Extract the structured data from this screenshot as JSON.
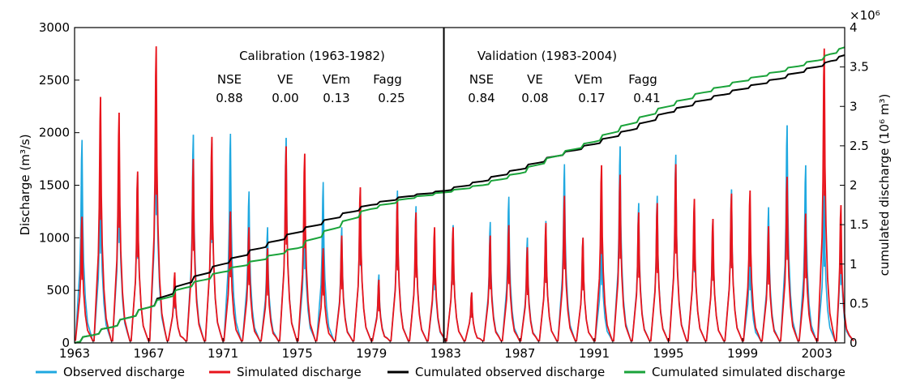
{
  "chart_data": {
    "type": "line",
    "xlabel": "",
    "ylabel_left": "Discharge (m³/s)",
    "ylabel_right": "cumulated discharge (10⁶ m³)",
    "right_axis_multiplier": "×10⁶",
    "x_range": [
      1963,
      2004.5
    ],
    "ylim_left": [
      0,
      3000
    ],
    "ylim_right": [
      0,
      4
    ],
    "x_ticks": [
      "1963",
      "1967",
      "1971",
      "1975",
      "1979",
      "1983",
      "1987",
      "1991",
      "1995",
      "1999",
      "2003"
    ],
    "y_ticks_left": [
      "0",
      "500",
      "1000",
      "1500",
      "2000",
      "2500",
      "3000"
    ],
    "y_ticks_right": [
      "0",
      "0.5",
      "1",
      "1.5",
      "2",
      "2.5",
      "3",
      "3.5",
      "4"
    ],
    "split_year": 1982.9,
    "periods": [
      {
        "title": "Calibration (1963-1982)",
        "metrics": [
          {
            "label": "NSE",
            "value": "0.88"
          },
          {
            "label": "VE",
            "value": "0.00"
          },
          {
            "label": "VEm",
            "value": "0.13"
          },
          {
            "label": "Fagg",
            "value": "0.25"
          }
        ]
      },
      {
        "title": "Validation (1983-2004)",
        "metrics": [
          {
            "label": "NSE",
            "value": "0.84"
          },
          {
            "label": "VE",
            "value": "0.08"
          },
          {
            "label": "VEm",
            "value": "0.17"
          },
          {
            "label": "Fagg",
            "value": "0.41"
          }
        ]
      }
    ],
    "series": [
      {
        "name": "Observed discharge",
        "axis": "left",
        "color": "#1fa8e0",
        "peaks": [
          {
            "year": 1963.4,
            "value": 1930
          },
          {
            "year": 1964.4,
            "value": 1700
          },
          {
            "year": 1965.4,
            "value": 1900
          },
          {
            "year": 1966.4,
            "value": 1600
          },
          {
            "year": 1967.4,
            "value": 2430
          },
          {
            "year": 1968.4,
            "value": 650
          },
          {
            "year": 1969.4,
            "value": 1980
          },
          {
            "year": 1970.4,
            "value": 1900
          },
          {
            "year": 1971.4,
            "value": 1990
          },
          {
            "year": 1972.4,
            "value": 1440
          },
          {
            "year": 1973.4,
            "value": 1100
          },
          {
            "year": 1974.4,
            "value": 1950
          },
          {
            "year": 1975.4,
            "value": 1400
          },
          {
            "year": 1976.4,
            "value": 1530
          },
          {
            "year": 1977.4,
            "value": 1100
          },
          {
            "year": 1978.4,
            "value": 1460
          },
          {
            "year": 1979.4,
            "value": 650
          },
          {
            "year": 1980.4,
            "value": 1450
          },
          {
            "year": 1981.4,
            "value": 1300
          },
          {
            "year": 1982.4,
            "value": 1000
          },
          {
            "year": 1983.4,
            "value": 1120
          },
          {
            "year": 1984.4,
            "value": 480
          },
          {
            "year": 1985.4,
            "value": 1150
          },
          {
            "year": 1986.4,
            "value": 1390
          },
          {
            "year": 1987.4,
            "value": 1000
          },
          {
            "year": 1988.4,
            "value": 1160
          },
          {
            "year": 1989.4,
            "value": 1700
          },
          {
            "year": 1990.4,
            "value": 1000
          },
          {
            "year": 1991.4,
            "value": 1100
          },
          {
            "year": 1992.4,
            "value": 1870
          },
          {
            "year": 1993.4,
            "value": 1330
          },
          {
            "year": 1994.4,
            "value": 1400
          },
          {
            "year": 1995.4,
            "value": 1790
          },
          {
            "year": 1996.4,
            "value": 1340
          },
          {
            "year": 1997.4,
            "value": 1180
          },
          {
            "year": 1998.4,
            "value": 1460
          },
          {
            "year": 1999.4,
            "value": 1000
          },
          {
            "year": 2000.4,
            "value": 1290
          },
          {
            "year": 2001.4,
            "value": 2070
          },
          {
            "year": 2002.4,
            "value": 1690
          },
          {
            "year": 2003.4,
            "value": 1450
          },
          {
            "year": 2004.3,
            "value": 1100
          }
        ]
      },
      {
        "name": "Simulated discharge",
        "axis": "left",
        "color": "#e8141c",
        "peaks": [
          {
            "year": 1963.4,
            "value": 1200
          },
          {
            "year": 1964.4,
            "value": 2340
          },
          {
            "year": 1965.4,
            "value": 2190
          },
          {
            "year": 1966.4,
            "value": 1630
          },
          {
            "year": 1967.4,
            "value": 2820
          },
          {
            "year": 1968.4,
            "value": 670
          },
          {
            "year": 1969.4,
            "value": 1750
          },
          {
            "year": 1970.4,
            "value": 1960
          },
          {
            "year": 1971.4,
            "value": 1250
          },
          {
            "year": 1972.4,
            "value": 1100
          },
          {
            "year": 1973.4,
            "value": 900
          },
          {
            "year": 1974.4,
            "value": 1870
          },
          {
            "year": 1975.4,
            "value": 1800
          },
          {
            "year": 1976.4,
            "value": 900
          },
          {
            "year": 1977.4,
            "value": 1020
          },
          {
            "year": 1978.4,
            "value": 1480
          },
          {
            "year": 1979.4,
            "value": 600
          },
          {
            "year": 1980.4,
            "value": 1380
          },
          {
            "year": 1981.4,
            "value": 1240
          },
          {
            "year": 1982.4,
            "value": 1100
          },
          {
            "year": 1983.4,
            "value": 1100
          },
          {
            "year": 1984.4,
            "value": 480
          },
          {
            "year": 1985.4,
            "value": 1020
          },
          {
            "year": 1986.4,
            "value": 1120
          },
          {
            "year": 1987.4,
            "value": 910
          },
          {
            "year": 1988.4,
            "value": 1140
          },
          {
            "year": 1989.4,
            "value": 1400
          },
          {
            "year": 1990.4,
            "value": 1000
          },
          {
            "year": 1991.4,
            "value": 1690
          },
          {
            "year": 1992.4,
            "value": 1600
          },
          {
            "year": 1993.4,
            "value": 1240
          },
          {
            "year": 1994.4,
            "value": 1330
          },
          {
            "year": 1995.4,
            "value": 1700
          },
          {
            "year": 1996.4,
            "value": 1370
          },
          {
            "year": 1997.4,
            "value": 1180
          },
          {
            "year": 1998.4,
            "value": 1420
          },
          {
            "year": 1999.4,
            "value": 1450
          },
          {
            "year": 2000.4,
            "value": 1110
          },
          {
            "year": 2001.4,
            "value": 1580
          },
          {
            "year": 2002.4,
            "value": 1230
          },
          {
            "year": 2003.4,
            "value": 2800
          },
          {
            "year": 2004.3,
            "value": 1310
          }
        ]
      },
      {
        "name": "Cumulated observed discharge",
        "axis": "right",
        "color": "#000000",
        "points": [
          {
            "year": 1963.0,
            "value": 0.0
          },
          {
            "year": 1965.0,
            "value": 0.2
          },
          {
            "year": 1967.0,
            "value": 0.45
          },
          {
            "year": 1969.0,
            "value": 0.75
          },
          {
            "year": 1971.0,
            "value": 1.0
          },
          {
            "year": 1973.0,
            "value": 1.2
          },
          {
            "year": 1975.0,
            "value": 1.4
          },
          {
            "year": 1977.0,
            "value": 1.58
          },
          {
            "year": 1979.0,
            "value": 1.75
          },
          {
            "year": 1981.0,
            "value": 1.86
          },
          {
            "year": 1983.0,
            "value": 1.93
          },
          {
            "year": 1985.0,
            "value": 2.05
          },
          {
            "year": 1987.0,
            "value": 2.2
          },
          {
            "year": 1989.0,
            "value": 2.37
          },
          {
            "year": 1991.0,
            "value": 2.52
          },
          {
            "year": 1993.0,
            "value": 2.7
          },
          {
            "year": 1995.0,
            "value": 2.92
          },
          {
            "year": 1997.0,
            "value": 3.08
          },
          {
            "year": 1999.0,
            "value": 3.22
          },
          {
            "year": 2001.0,
            "value": 3.35
          },
          {
            "year": 2003.0,
            "value": 3.5
          },
          {
            "year": 2004.5,
            "value": 3.65
          }
        ]
      },
      {
        "name": "Cumulated simulated discharge",
        "axis": "right",
        "color": "#1aa33a",
        "points": [
          {
            "year": 1963.0,
            "value": 0.0
          },
          {
            "year": 1965.0,
            "value": 0.2
          },
          {
            "year": 1967.0,
            "value": 0.45
          },
          {
            "year": 1969.0,
            "value": 0.7
          },
          {
            "year": 1971.0,
            "value": 0.9
          },
          {
            "year": 1973.0,
            "value": 1.05
          },
          {
            "year": 1975.0,
            "value": 1.2
          },
          {
            "year": 1977.0,
            "value": 1.45
          },
          {
            "year": 1979.0,
            "value": 1.7
          },
          {
            "year": 1981.0,
            "value": 1.83
          },
          {
            "year": 1983.0,
            "value": 1.91
          },
          {
            "year": 1985.0,
            "value": 2.0
          },
          {
            "year": 1987.0,
            "value": 2.15
          },
          {
            "year": 1989.0,
            "value": 2.37
          },
          {
            "year": 1991.0,
            "value": 2.55
          },
          {
            "year": 1993.0,
            "value": 2.78
          },
          {
            "year": 1995.0,
            "value": 3.0
          },
          {
            "year": 1997.0,
            "value": 3.18
          },
          {
            "year": 1999.0,
            "value": 3.32
          },
          {
            "year": 2001.0,
            "value": 3.44
          },
          {
            "year": 2003.0,
            "value": 3.58
          },
          {
            "year": 2004.5,
            "value": 3.75
          }
        ]
      }
    ],
    "legend_position": "bottom",
    "grid": false
  }
}
